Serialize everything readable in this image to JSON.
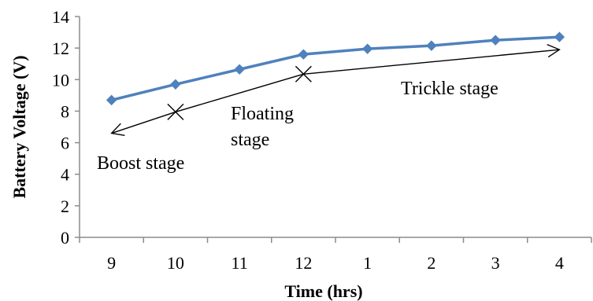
{
  "chart_data": {
    "type": "line",
    "categories": [
      "9",
      "10",
      "11",
      "12",
      "1",
      "2",
      "3",
      "4"
    ],
    "series": [
      {
        "values": [
          8.7,
          9.7,
          10.65,
          11.6,
          11.95,
          12.15,
          12.5,
          12.7
        ],
        "color": "#4f81bd",
        "marker": "diamond"
      }
    ],
    "xlabel": "Time (hrs)",
    "ylabel": "Battery  Voltage (V)",
    "ylim": [
      0,
      14
    ],
    "yticks": [
      0,
      2,
      4,
      6,
      8,
      10,
      12,
      14
    ],
    "grid": false,
    "annotations": [
      {
        "text": "Boost stage"
      },
      {
        "text": "Floating"
      },
      {
        "text": "stage"
      },
      {
        "text": "Trickle stage"
      }
    ],
    "stage_arrows": [
      {
        "from": {
          "x": "9",
          "y": 6.6
        },
        "to": {
          "x": "10",
          "y": 7.95
        }
      },
      {
        "from": {
          "x": "10",
          "y": 7.95
        },
        "to": {
          "x": "12",
          "y": 10.35
        }
      },
      {
        "from": {
          "x": "12",
          "y": 10.35
        },
        "to": {
          "x": "4",
          "y": 11.9
        }
      }
    ]
  }
}
